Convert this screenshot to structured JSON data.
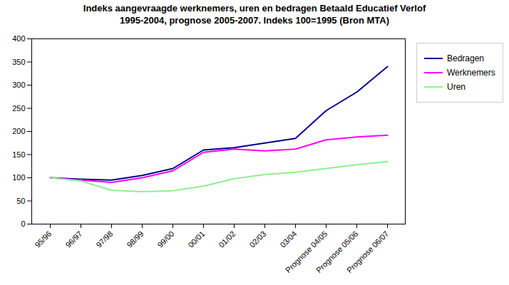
{
  "chart_data": {
    "type": "line",
    "title": "Indeks aangevraagde werknemers, uren en bedragen Betaald Educatief Verlof\n1995-2004, prognose 2005-2007. Indeks 100=1995 (Bron MTA)",
    "categories": [
      "95/96",
      "96/97",
      "97/98",
      "98/99",
      "99/00",
      "00/01",
      "01/02",
      "02/03",
      "03/04",
      "Prognose 04/05",
      "Prognose 05/06",
      "Prognose 06/07"
    ],
    "series": [
      {
        "name": "Bedragen",
        "color": "#00008B",
        "values": [
          100,
          97,
          95,
          105,
          120,
          160,
          165,
          175,
          185,
          245,
          285,
          340
        ]
      },
      {
        "name": "Werknemers",
        "color": "#FF00FF",
        "values": [
          100,
          95,
          90,
          100,
          115,
          155,
          162,
          158,
          162,
          182,
          188,
          192
        ]
      },
      {
        "name": "Uren",
        "color": "#90EE90",
        "values": [
          100,
          93,
          73,
          70,
          72,
          82,
          98,
          107,
          112,
          120,
          128,
          135
        ]
      }
    ],
    "ylim": [
      0,
      400
    ],
    "yticks": [
      0,
      50,
      100,
      150,
      200,
      250,
      300,
      350,
      400
    ],
    "grid": false,
    "legend": "right"
  }
}
